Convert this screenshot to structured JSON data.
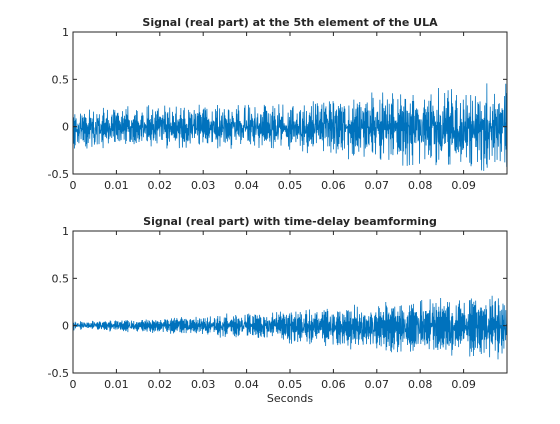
{
  "figure": {
    "background": "#ffffff",
    "line_color": "#0072bd",
    "axis_color": "#262626"
  },
  "chart_data": [
    {
      "type": "line",
      "title": "Signal (real part) at the 5th element of the ULA",
      "xlabel": "",
      "ylabel": "",
      "xlim": [
        0,
        0.1
      ],
      "ylim": [
        -0.5,
        1
      ],
      "xticks": [
        0,
        0.01,
        0.02,
        0.03,
        0.04,
        0.05,
        0.06,
        0.07,
        0.08,
        0.09
      ],
      "xtick_labels": [
        "0",
        "0.01",
        "0.02",
        "0.03",
        "0.04",
        "0.05",
        "0.06",
        "0.07",
        "0.08",
        "0.09"
      ],
      "yticks": [
        -0.5,
        0,
        0.5,
        1
      ],
      "ytick_labels": [
        "-0.5",
        "0",
        "0.5",
        "1"
      ],
      "grid": false,
      "series": [
        {
          "color": "#0072bd",
          "envelope": {
            "x": [
              0,
              0.01,
              0.02,
              0.03,
              0.04,
              0.05,
              0.06,
              0.07,
              0.08,
              0.09,
              0.1
            ],
            "upper": [
              0.2,
              0.2,
              0.22,
              0.22,
              0.24,
              0.22,
              0.3,
              0.35,
              0.38,
              0.42,
              0.45
            ],
            "lower": [
              -0.25,
              -0.2,
              -0.22,
              -0.22,
              -0.24,
              -0.25,
              -0.3,
              -0.38,
              -0.4,
              -0.45,
              -0.48
            ]
          }
        }
      ]
    },
    {
      "type": "line",
      "title": "Signal (real part) with time-delay beamforming",
      "xlabel": "Seconds",
      "ylabel": "",
      "xlim": [
        0,
        0.1
      ],
      "ylim": [
        -0.5,
        1
      ],
      "xticks": [
        0,
        0.01,
        0.02,
        0.03,
        0.04,
        0.05,
        0.06,
        0.07,
        0.08,
        0.09
      ],
      "xtick_labels": [
        "0",
        "0.01",
        "0.02",
        "0.03",
        "0.04",
        "0.05",
        "0.06",
        "0.07",
        "0.08",
        "0.09"
      ],
      "yticks": [
        -0.5,
        0,
        0.5,
        1
      ],
      "ytick_labels": [
        "-0.5",
        "0",
        "0.5",
        "1"
      ],
      "grid": false,
      "series": [
        {
          "color": "#0072bd",
          "envelope": {
            "x": [
              0,
              0.01,
              0.02,
              0.03,
              0.04,
              0.05,
              0.06,
              0.07,
              0.08,
              0.09,
              0.1
            ],
            "upper": [
              0.06,
              0.07,
              0.1,
              0.12,
              0.15,
              0.18,
              0.22,
              0.3,
              0.32,
              0.35,
              0.38
            ],
            "lower": [
              -0.06,
              -0.07,
              -0.1,
              -0.12,
              -0.16,
              -0.2,
              -0.25,
              -0.32,
              -0.35,
              -0.38,
              -0.42
            ]
          }
        }
      ]
    }
  ]
}
